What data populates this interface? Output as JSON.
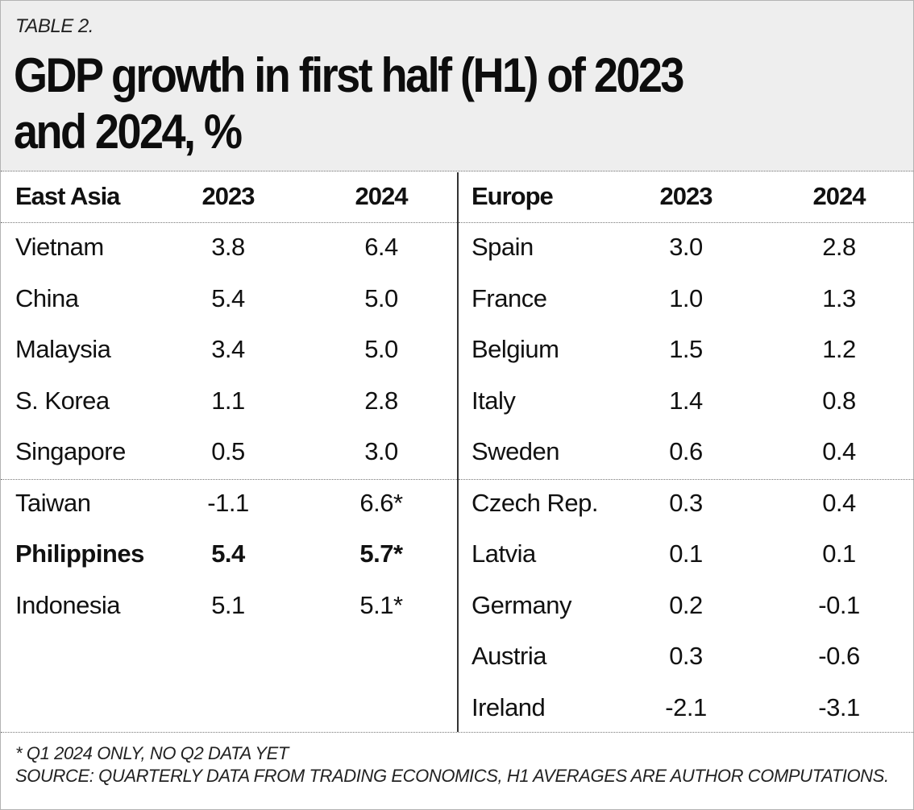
{
  "label": "TABLE 2.",
  "title_line1": "GDP growth in first half (H1) of 2023",
  "title_line2": "and 2024, %",
  "chart_data": {
    "type": "table",
    "tables": [
      {
        "region": "East Asia",
        "columns": [
          "2023",
          "2024"
        ],
        "rows": [
          {
            "name": "Vietnam",
            "v2023": "3.8",
            "v2024": "6.4",
            "bold": false
          },
          {
            "name": "China",
            "v2023": "5.4",
            "v2024": "5.0",
            "bold": false
          },
          {
            "name": "Malaysia",
            "v2023": "3.4",
            "v2024": "5.0",
            "bold": false
          },
          {
            "name": "S. Korea",
            "v2023": "1.1",
            "v2024": "2.8",
            "bold": false
          },
          {
            "name": "Singapore",
            "v2023": "0.5",
            "v2024": "3.0",
            "bold": false
          },
          {
            "name": "Taiwan",
            "v2023": "-1.1",
            "v2024": "6.6*",
            "bold": false
          },
          {
            "name": "Philippines",
            "v2023": "5.4",
            "v2024": "5.7*",
            "bold": true
          },
          {
            "name": "Indonesia",
            "v2023": "5.1",
            "v2024": "5.1*",
            "bold": false
          }
        ]
      },
      {
        "region": "Europe",
        "columns": [
          "2023",
          "2024"
        ],
        "rows": [
          {
            "name": "Spain",
            "v2023": "3.0",
            "v2024": "2.8",
            "bold": false
          },
          {
            "name": "France",
            "v2023": "1.0",
            "v2024": "1.3",
            "bold": false
          },
          {
            "name": "Belgium",
            "v2023": "1.5",
            "v2024": "1.2",
            "bold": false
          },
          {
            "name": "Italy",
            "v2023": "1.4",
            "v2024": "0.8",
            "bold": false
          },
          {
            "name": "Sweden",
            "v2023": "0.6",
            "v2024": "0.4",
            "bold": false
          },
          {
            "name": "Czech Rep.",
            "v2023": "0.3",
            "v2024": "0.4",
            "bold": false
          },
          {
            "name": "Latvia",
            "v2023": "0.1",
            "v2024": "0.1",
            "bold": false
          },
          {
            "name": "Germany",
            "v2023": "0.2",
            "v2024": "-0.1",
            "bold": false
          },
          {
            "name": "Austria",
            "v2023": "0.3",
            "v2024": "-0.6",
            "bold": false
          },
          {
            "name": "Ireland",
            "v2023": "-2.1",
            "v2024": "-3.1",
            "bold": false
          }
        ]
      }
    ]
  },
  "footnote": "* Q1 2024 ONLY, NO Q2 DATA YET",
  "source": "SOURCE: QUARTERLY DATA FROM TRADING ECONOMICS, H1 AVERAGES ARE AUTHOR COMPUTATIONS."
}
